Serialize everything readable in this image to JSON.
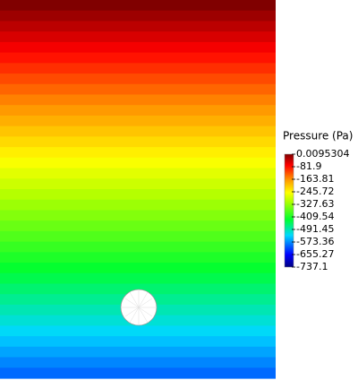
{
  "chart_data": {
    "type": "contour",
    "colorbar_title": "Pressure (Pa)",
    "values": [
      0,
      -17,
      -34,
      -51,
      -68,
      -85,
      -102,
      -119,
      -136,
      -153,
      -170,
      -187,
      -204,
      -221,
      -238,
      -255,
      -272,
      -289,
      -306,
      -323,
      -340,
      -357,
      -374,
      -391,
      -408,
      -425,
      -442,
      -459,
      -476,
      -493,
      -510,
      -527,
      -544,
      -561,
      -578,
      -595
    ],
    "clim": [
      -737.1,
      0.0095304
    ],
    "ticks": [
      0.0095304,
      -81.9,
      -163.81,
      -245.72,
      -327.63,
      -409.54,
      -491.45,
      -573.36,
      -655.27,
      -737.1
    ],
    "colormap": [
      [
        0,
        "#000080"
      ],
      [
        0.11,
        "#0000ff"
      ],
      [
        0.28,
        "#00d8ff"
      ],
      [
        0.42,
        "#00ff30"
      ],
      [
        0.58,
        "#b0ff00"
      ],
      [
        0.66,
        "#ffff00"
      ],
      [
        0.78,
        "#ff9000"
      ],
      [
        0.9,
        "#ff0000"
      ],
      [
        1,
        "#800000"
      ]
    ]
  }
}
